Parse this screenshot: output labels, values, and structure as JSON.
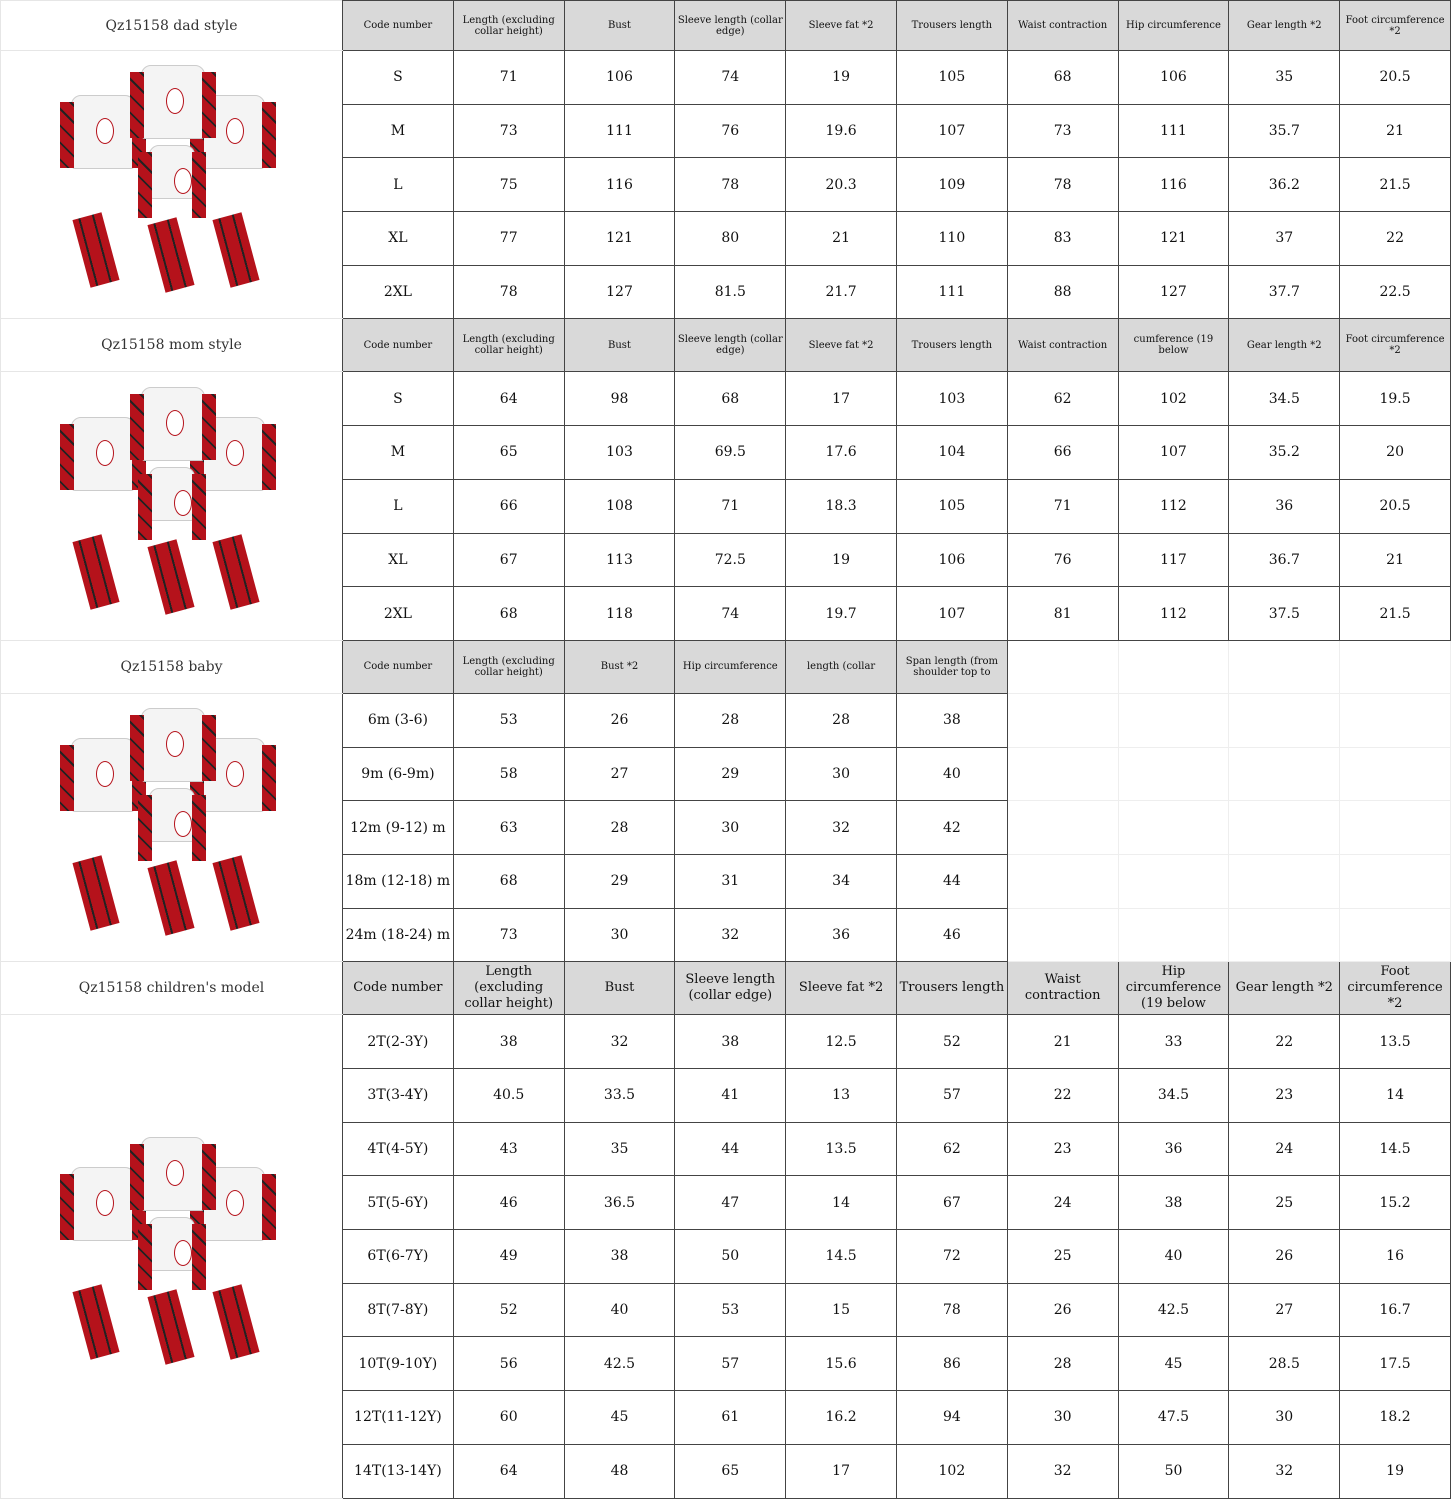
{
  "colors": {
    "header_bg": "#d9d9d9",
    "plaid_red": "#b5121b"
  },
  "sections": [
    {
      "title": "Qz15158 dad style",
      "big": false,
      "headers": [
        "Code number",
        "Length (excluding collar height)",
        "Bust",
        "Sleeve length (collar edge)",
        "Sleeve fat *2",
        "Trousers length",
        "Waist contraction",
        "Hip circumference",
        "Gear length *2",
        "Foot circumference *2"
      ],
      "rows": [
        [
          "S",
          "71",
          "106",
          "74",
          "19",
          "105",
          "68",
          "106",
          "35",
          "20.5"
        ],
        [
          "M",
          "73",
          "111",
          "76",
          "19.6",
          "107",
          "73",
          "111",
          "35.7",
          "21"
        ],
        [
          "L",
          "75",
          "116",
          "78",
          "20.3",
          "109",
          "78",
          "116",
          "36.2",
          "21.5"
        ],
        [
          "XL",
          "77",
          "121",
          "80",
          "21",
          "110",
          "83",
          "121",
          "37",
          "22"
        ],
        [
          "2XL",
          "78",
          "127",
          "81.5",
          "21.7",
          "111",
          "88",
          "127",
          "37.7",
          "22.5"
        ]
      ]
    },
    {
      "title": "Qz15158 mom style",
      "big": false,
      "headers": [
        "Code number",
        "Length (excluding collar height)",
        "Bust",
        "Sleeve length (collar edge)",
        "Sleeve fat *2",
        "Trousers length",
        "Waist contraction",
        "cumference (19 below",
        "Gear length *2",
        "Foot circumference *2"
      ],
      "rows": [
        [
          "S",
          "64",
          "98",
          "68",
          "17",
          "103",
          "62",
          "102",
          "34.5",
          "19.5"
        ],
        [
          "M",
          "65",
          "103",
          "69.5",
          "17.6",
          "104",
          "66",
          "107",
          "35.2",
          "20"
        ],
        [
          "L",
          "66",
          "108",
          "71",
          "18.3",
          "105",
          "71",
          "112",
          "36",
          "20.5"
        ],
        [
          "XL",
          "67",
          "113",
          "72.5",
          "19",
          "106",
          "76",
          "117",
          "36.7",
          "21"
        ],
        [
          "2XL",
          "68",
          "118",
          "74",
          "19.7",
          "107",
          "81",
          "112",
          "37.5",
          "21.5"
        ]
      ]
    },
    {
      "title": "Qz15158 baby",
      "big": false,
      "headers": [
        "Code number",
        "Length (excluding collar height)",
        "Bust *2",
        "Hip circumference",
        "length (collar",
        "Span length (from shoulder top to"
      ],
      "rows": [
        [
          "6m (3-6)",
          "53",
          "26",
          "28",
          "28",
          "38"
        ],
        [
          "9m (6-9m)",
          "58",
          "27",
          "29",
          "30",
          "40"
        ],
        [
          "12m (9-12) m",
          "63",
          "28",
          "30",
          "32",
          "42"
        ],
        [
          "18m (12-18) m",
          "68",
          "29",
          "31",
          "34",
          "44"
        ],
        [
          "24m (18-24) m",
          "73",
          "30",
          "32",
          "36",
          "46"
        ]
      ]
    },
    {
      "title": "Qz15158 children's model",
      "big": true,
      "headers": [
        "Code number",
        "Length (excluding collar height)",
        "Bust",
        "Sleeve length (collar edge)",
        "Sleeve fat *2",
        "Trousers length",
        "Waist contraction",
        "Hip circumference (19 below",
        "Gear length *2",
        "Foot circumference *2"
      ],
      "rows": [
        [
          "2T(2-3Y)",
          "38",
          "32",
          "38",
          "12.5",
          "52",
          "21",
          "33",
          "22",
          "13.5"
        ],
        [
          "3T(3-4Y)",
          "40.5",
          "33.5",
          "41",
          "13",
          "57",
          "22",
          "34.5",
          "23",
          "14"
        ],
        [
          "4T(4-5Y)",
          "43",
          "35",
          "44",
          "13.5",
          "62",
          "23",
          "36",
          "24",
          "14.5"
        ],
        [
          "5T(5-6Y)",
          "46",
          "36.5",
          "47",
          "14",
          "67",
          "24",
          "38",
          "25",
          "15.2"
        ],
        [
          "6T(6-7Y)",
          "49",
          "38",
          "50",
          "14.5",
          "72",
          "25",
          "40",
          "26",
          "16"
        ],
        [
          "8T(7-8Y)",
          "52",
          "40",
          "53",
          "15",
          "78",
          "26",
          "42.5",
          "27",
          "16.7"
        ],
        [
          "10T(9-10Y)",
          "56",
          "42.5",
          "57",
          "15.6",
          "86",
          "28",
          "45",
          "28.5",
          "17.5"
        ],
        [
          "12T(11-12Y)",
          "60",
          "45",
          "61",
          "16.2",
          "94",
          "30",
          "47.5",
          "30",
          "18.2"
        ],
        [
          "14T(13-14Y)",
          "64",
          "48",
          "65",
          "17",
          "102",
          "32",
          "50",
          "32",
          "19"
        ]
      ]
    }
  ]
}
